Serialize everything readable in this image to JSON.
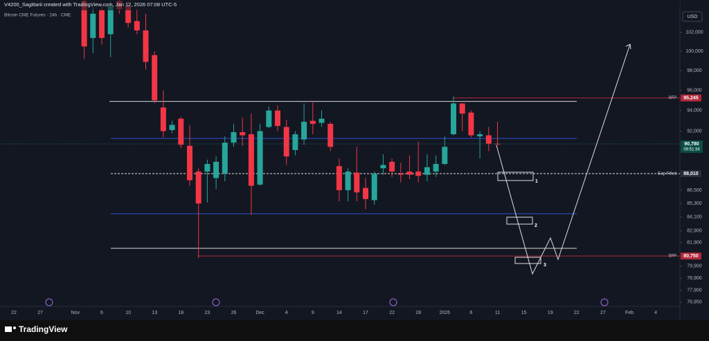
{
  "chart_data": {
    "type": "candlestick",
    "title": "V4200_Sagittarii created with TradingView.com, Jan 12, 2026 07:08 UTC-5",
    "subtitle": "Bitcoin CME Futures · 24h · CME",
    "currency": "USD",
    "brand": "TradingView",
    "log_scale": true,
    "up_color": "#26a69a",
    "down_color": "#f23645",
    "categories": [
      "22",
      null,
      null,
      "27",
      null,
      null,
      null,
      "Nov",
      null,
      null,
      "6",
      null,
      null,
      "10",
      null,
      null,
      "13",
      null,
      null,
      "18",
      null,
      null,
      "23",
      null,
      null,
      "26",
      null,
      null,
      "Dec",
      null,
      null,
      "4",
      null,
      null,
      "9",
      null,
      null,
      "14",
      null,
      null,
      "17",
      null,
      null,
      "22",
      null,
      null,
      "28",
      null,
      null,
      "2026",
      null,
      null,
      "6",
      null,
      null,
      "11",
      null,
      null,
      "15",
      null,
      null,
      "19",
      null,
      null,
      "22",
      null,
      null,
      "27",
      null,
      null,
      "Feb",
      null,
      null,
      "4"
    ],
    "open": [
      null,
      null,
      null,
      null,
      null,
      null,
      null,
      null,
      105400,
      101400,
      104400,
      101800,
      105400,
      104800,
      103200,
      102200,
      99600,
      94300,
      92100,
      93200,
      90600,
      88200,
      88200,
      87600,
      88000,
      90900,
      91900,
      91700,
      87000,
      92400,
      94000,
      92400,
      90200,
      91200,
      93000,
      92800,
      92700,
      88700,
      86500,
      88100,
      86700,
      85600,
      88500,
      89100,
      88000,
      88200,
      88200,
      87900,
      88200,
      88900,
      91700,
      94700,
      93800,
      91500,
      91600,
      90800,
      null,
      null,
      null,
      null,
      null,
      null,
      null,
      null,
      null,
      null,
      null,
      null,
      null,
      null,
      null,
      null,
      null,
      null
    ],
    "high": [
      null,
      null,
      null,
      null,
      null,
      null,
      null,
      null,
      105500,
      104800,
      105000,
      105400,
      105500,
      105400,
      104500,
      104000,
      100000,
      96000,
      93000,
      93400,
      92600,
      88500,
      89300,
      89600,
      91500,
      92700,
      93300,
      93700,
      92700,
      94400,
      94500,
      93100,
      92000,
      94700,
      94800,
      94000,
      92900,
      89400,
      88500,
      90500,
      87600,
      88200,
      89800,
      89400,
      89000,
      89700,
      91000,
      89800,
      89700,
      91500,
      95400,
      94700,
      94000,
      92000,
      92400,
      92900,
      null,
      null,
      null,
      null,
      null,
      null,
      null,
      null,
      null,
      null,
      null,
      null,
      null,
      null,
      null,
      null,
      null,
      null
    ],
    "low": [
      null,
      null,
      null,
      null,
      null,
      null,
      null,
      null,
      99200,
      99800,
      100700,
      99400,
      104000,
      102500,
      101800,
      98100,
      94700,
      91400,
      91800,
      90400,
      86900,
      80600,
      85400,
      86600,
      87300,
      90500,
      90600,
      84300,
      86900,
      92300,
      92000,
      88800,
      89700,
      90700,
      91700,
      92400,
      90100,
      85500,
      85500,
      85500,
      84800,
      85200,
      87900,
      87700,
      87200,
      87500,
      87200,
      87300,
      87700,
      88800,
      91600,
      92000,
      91400,
      89400,
      90100,
      90600,
      null,
      null,
      null,
      null,
      null,
      null,
      null,
      null,
      null,
      null,
      null,
      null,
      null,
      null,
      null,
      null,
      null,
      null
    ],
    "close": [
      null,
      null,
      null,
      null,
      null,
      null,
      null,
      null,
      100500,
      104000,
      101400,
      104800,
      104500,
      103000,
      102200,
      98900,
      95000,
      92000,
      92600,
      90700,
      87400,
      85300,
      88900,
      89100,
      90900,
      91900,
      91600,
      86900,
      92000,
      94000,
      92500,
      89600,
      91700,
      92900,
      92700,
      93200,
      90500,
      86500,
      88200,
      86300,
      85700,
      88000,
      88800,
      88200,
      87900,
      87900,
      87800,
      88600,
      88900,
      90500,
      94700,
      93700,
      91600,
      91700,
      90800,
      90780,
      null,
      null,
      null,
      null,
      null,
      null,
      null,
      null,
      null,
      null,
      null,
      null,
      null,
      null,
      null,
      null,
      null,
      null
    ],
    "ylim": [
      76500,
      105500
    ],
    "yticks": [
      {
        "value": 102000,
        "label": "102,000"
      },
      {
        "value": 100000,
        "label": "100,000"
      },
      {
        "value": 98000,
        "label": "98,000"
      },
      {
        "value": 96000,
        "label": "96,000"
      },
      {
        "value": 94000,
        "label": "94,000"
      },
      {
        "value": 92000,
        "label": "92,000"
      },
      {
        "value": 86500,
        "label": "86,500"
      },
      {
        "value": 85300,
        "label": "85,300"
      },
      {
        "value": 84100,
        "label": "84,100"
      },
      {
        "value": 82900,
        "label": "82,900"
      },
      {
        "value": 81900,
        "label": "81,900"
      },
      {
        "value": 79900,
        "label": "79,900"
      },
      {
        "value": 78900,
        "label": "78,900"
      },
      {
        "value": 77900,
        "label": "77,900"
      },
      {
        "value": 76950,
        "label": "76,950"
      }
    ],
    "lines": [
      {
        "value": 94900,
        "color": "#d8d8d8"
      },
      {
        "value": 91300,
        "color": "#2f4fd0"
      },
      {
        "value": 84400,
        "color": "#2f4fd0"
      },
      {
        "value": 81400,
        "color": "#d8d8d8"
      }
    ],
    "levels": [
      {
        "value": 95245,
        "label": "95,245",
        "tag": "SFP",
        "color": "#b2283a"
      },
      {
        "value": 88010,
        "label": "88,010",
        "tag": "Gap Filled",
        "color": "#2a2e39"
      },
      {
        "value": 80750,
        "label": "80,750",
        "tag": "SFP",
        "color": "#b2283a"
      }
    ],
    "last_price": {
      "value": 90780,
      "label": "90,780",
      "countdown": "09:51:34"
    },
    "annotations": [
      "1",
      "2",
      "3"
    ]
  }
}
